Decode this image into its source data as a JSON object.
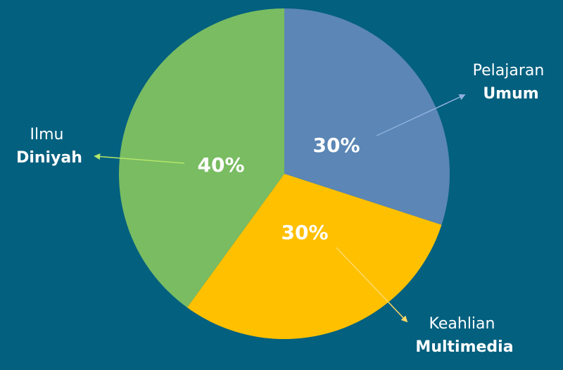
{
  "chart_data": {
    "type": "pie",
    "categories": [
      "Pelajaran Umum",
      "Keahlian Multimedia",
      "Ilmu Diniyah"
    ],
    "values": [
      30,
      30,
      40
    ],
    "value_labels": [
      "30%",
      "30%",
      "40%"
    ],
    "colors": [
      "#5b86b5",
      "#ffc000",
      "#79bc62"
    ]
  }
}
